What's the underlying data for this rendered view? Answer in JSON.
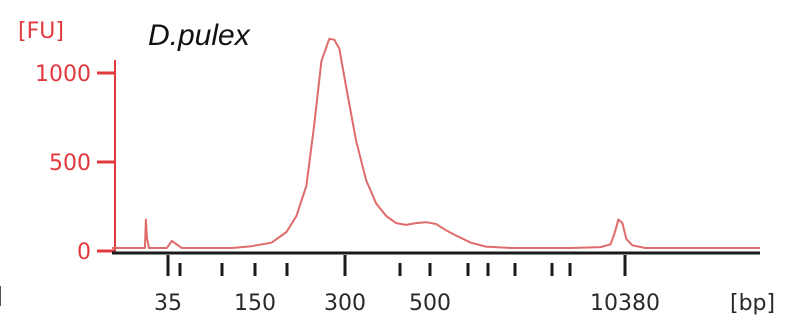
{
  "chart_data": {
    "type": "line",
    "title": "D.pulex",
    "ylabel": "[FU]",
    "xlabel": "[bp]",
    "ylim": [
      -20,
      1250
    ],
    "y_ticks": [
      0,
      500,
      1000
    ],
    "y_tick_labels": [
      "0",
      "500",
      "1000"
    ],
    "x_ticks": [
      {
        "label": "35"
      },
      {
        "label": ""
      },
      {
        "label": ""
      },
      {
        "label": "150"
      },
      {
        "label": ""
      },
      {
        "label": "300"
      },
      {
        "label": ""
      },
      {
        "label": "500"
      },
      {
        "label": ""
      },
      {
        "label": ""
      },
      {
        "label": ""
      },
      {
        "label": ""
      },
      {
        "label": ""
      },
      {
        "label": "10380"
      }
    ],
    "series": [
      {
        "values": [
          [
            0.0,
            0
          ],
          [
            0.25,
            0
          ],
          [
            0.33,
            0
          ],
          [
            0.34,
            160
          ],
          [
            0.35,
            60
          ],
          [
            0.37,
            0
          ],
          [
            0.45,
            0
          ],
          [
            0.55,
            0
          ],
          [
            0.6,
            40
          ],
          [
            0.7,
            0
          ],
          [
            0.9,
            0
          ],
          [
            1.0,
            0
          ],
          [
            1.2,
            0
          ],
          [
            1.4,
            10
          ],
          [
            1.6,
            30
          ],
          [
            1.75,
            90
          ],
          [
            1.85,
            180
          ],
          [
            1.95,
            350
          ],
          [
            2.03,
            700
          ],
          [
            2.1,
            1050
          ],
          [
            2.18,
            1175
          ],
          [
            2.23,
            1170
          ],
          [
            2.28,
            1120
          ],
          [
            2.35,
            900
          ],
          [
            2.45,
            600
          ],
          [
            2.55,
            380
          ],
          [
            2.65,
            250
          ],
          [
            2.75,
            180
          ],
          [
            2.85,
            140
          ],
          [
            2.95,
            130
          ],
          [
            3.05,
            140
          ],
          [
            3.15,
            145
          ],
          [
            3.25,
            135
          ],
          [
            3.35,
            100
          ],
          [
            3.45,
            70
          ],
          [
            3.6,
            30
          ],
          [
            3.75,
            8
          ],
          [
            4.0,
            0
          ],
          [
            4.6,
            0
          ],
          [
            4.9,
            5
          ],
          [
            5.0,
            20
          ],
          [
            5.04,
            80
          ],
          [
            5.08,
            160
          ],
          [
            5.12,
            140
          ],
          [
            5.16,
            50
          ],
          [
            5.22,
            15
          ],
          [
            5.35,
            0
          ],
          [
            6.5,
            0
          ]
        ]
      }
    ],
    "colors": {
      "trace": "#e06b6b",
      "y_axis": "#e0393e",
      "x_axis": "#1a1a1a"
    }
  }
}
